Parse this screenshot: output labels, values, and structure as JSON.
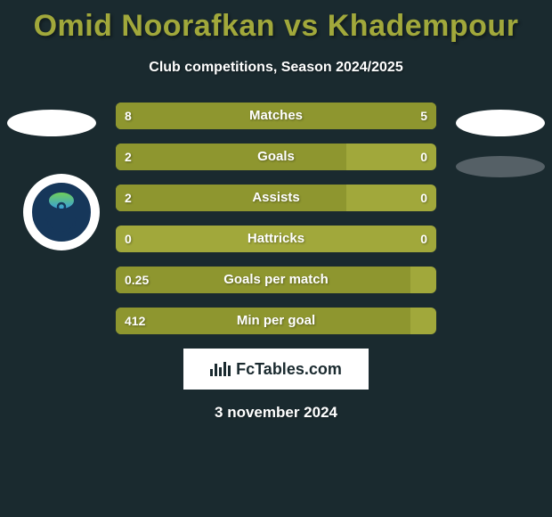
{
  "title": "Omid Noorafkan vs Khadempour",
  "subtitle": "Club competitions, Season 2024/2025",
  "colors": {
    "background": "#1a2a2f",
    "accent": "#a1a83b",
    "accent_dark": "#8e962f",
    "text": "#ffffff"
  },
  "badge": "FcTables.com",
  "date": "3 november 2024",
  "rows": [
    {
      "label": "Matches",
      "left": "8",
      "right": "5",
      "left_pct": 61,
      "right_pct": 39
    },
    {
      "label": "Goals",
      "left": "2",
      "right": "0",
      "left_pct": 72,
      "right_pct": 0
    },
    {
      "label": "Assists",
      "left": "2",
      "right": "0",
      "left_pct": 72,
      "right_pct": 0
    },
    {
      "label": "Hattricks",
      "left": "0",
      "right": "0",
      "left_pct": 0,
      "right_pct": 0
    },
    {
      "label": "Goals per match",
      "left": "0.25",
      "right": "",
      "left_pct": 92,
      "right_pct": 0
    },
    {
      "label": "Min per goal",
      "left": "412",
      "right": "",
      "left_pct": 92,
      "right_pct": 0
    }
  ]
}
